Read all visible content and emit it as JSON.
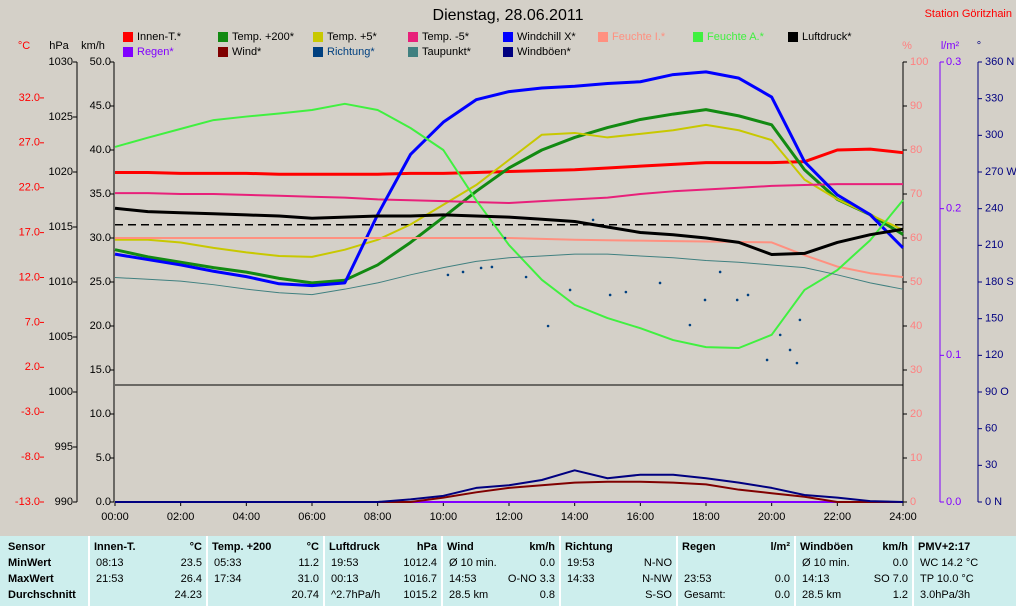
{
  "chart_data": {
    "type": "line",
    "title": "Dienstag, 28.06.2011",
    "subtitle": "Station Göritzhain",
    "x": [
      0,
      1,
      2,
      3,
      4,
      5,
      6,
      7,
      8,
      9,
      10,
      11,
      12,
      13,
      14,
      15,
      16,
      17,
      18,
      19,
      20,
      21,
      22,
      23,
      24
    ],
    "xlim": [
      0,
      24
    ],
    "xticks": [
      {
        "value": 0,
        "label": "00:00"
      },
      {
        "value": 2,
        "label": "02:00"
      },
      {
        "value": 4,
        "label": "04:00"
      },
      {
        "value": 6,
        "label": "06:00"
      },
      {
        "value": 8,
        "label": "08:00"
      },
      {
        "value": 10,
        "label": "10:00"
      },
      {
        "value": 12,
        "label": "12:00"
      },
      {
        "value": 14,
        "label": "14:00"
      },
      {
        "value": 16,
        "label": "16:00"
      },
      {
        "value": 18,
        "label": "18:00"
      },
      {
        "value": 20,
        "label": "20:00"
      },
      {
        "value": 22,
        "label": "22:00"
      },
      {
        "value": 24,
        "label": "24:00"
      }
    ],
    "axes": [
      {
        "label": "°C",
        "color": "#ff0000",
        "lim": [
          -13,
          36
        ],
        "ticks": [
          {
            "value": -13,
            "label": "-13.0"
          },
          {
            "value": -8,
            "label": "-8.0"
          },
          {
            "value": -3,
            "label": "-3.0"
          },
          {
            "value": 2,
            "label": "2.0"
          },
          {
            "value": 7,
            "label": "7.0"
          },
          {
            "value": 12,
            "label": "12.0"
          },
          {
            "value": 17,
            "label": "17.0"
          },
          {
            "value": 22,
            "label": "22.0"
          },
          {
            "value": 27,
            "label": "27.0"
          },
          {
            "value": 32,
            "label": "32.0"
          }
        ]
      },
      {
        "label": "hPa",
        "color": "#000000",
        "lim": [
          990,
          1030
        ],
        "ticks": [
          990,
          995,
          1000,
          1005,
          1010,
          1015,
          1020,
          1025,
          1030
        ]
      },
      {
        "label": "km/h",
        "color": "#000000",
        "lim": [
          0,
          50
        ],
        "ticks": [
          {
            "value": 0,
            "label": "0.0"
          },
          {
            "value": 5,
            "label": "5.0"
          },
          {
            "value": 10,
            "label": "10.0"
          },
          {
            "value": 15,
            "label": "15.0"
          },
          {
            "value": 20,
            "label": "20.0"
          },
          {
            "value": 25,
            "label": "25.0"
          },
          {
            "value": 30,
            "label": "30.0"
          },
          {
            "value": 35,
            "label": "35.0"
          },
          {
            "value": 40,
            "label": "40.0"
          },
          {
            "value": 45,
            "label": "45.0"
          },
          {
            "value": 50,
            "label": "50.0"
          }
        ]
      },
      {
        "label": "%",
        "color": "#ff8080",
        "lim": [
          0,
          100
        ],
        "ticks": [
          0,
          10,
          20,
          30,
          40,
          50,
          60,
          70,
          80,
          90,
          100
        ]
      },
      {
        "label": "l/m²",
        "color": "#8000ff",
        "lim": [
          0,
          0.3
        ],
        "ticks": [
          {
            "value": 0,
            "label": "0.0"
          },
          0.1,
          0.2,
          0.3
        ]
      },
      {
        "label": "°",
        "color": "#000080",
        "lim": [
          0,
          360
        ],
        "ticks": [
          {
            "value": 0,
            "label": "0 N"
          },
          30,
          60,
          {
            "value": 90,
            "label": "90 O"
          },
          120,
          150,
          {
            "value": 180,
            "label": "180 S"
          },
          210,
          240,
          {
            "value": 270,
            "label": "270 W"
          },
          300,
          330,
          {
            "value": 360,
            "label": "360 N"
          }
        ]
      }
    ],
    "hline": {
      "value": 1015.2,
      "axis": "hPa"
    },
    "series": [
      {
        "name": "Innen-T.*",
        "axis": "°C",
        "color": "#ff0000",
        "line_width": 3,
        "values": [
          23.7,
          23.7,
          23.6,
          23.6,
          23.6,
          23.5,
          23.5,
          23.5,
          23.5,
          23.6,
          23.6,
          23.7,
          23.8,
          23.9,
          24.0,
          24.2,
          24.4,
          24.6,
          24.8,
          24.8,
          24.8,
          24.9,
          26.2,
          26.3,
          25.9
        ]
      },
      {
        "name": "Temp. +200*",
        "axis": "°C",
        "color": "#128a12",
        "line_width": 3,
        "values": [
          15.1,
          14.3,
          13.7,
          13.1,
          12.6,
          11.9,
          11.4,
          11.7,
          13.4,
          15.9,
          18.7,
          21.6,
          24.2,
          26.2,
          27.6,
          28.7,
          29.6,
          30.2,
          30.7,
          30.0,
          29.0,
          24.0,
          20.7,
          19.0,
          16.8
        ]
      },
      {
        "name": "Temp. +5*",
        "axis": "°C",
        "color": "#c8c800",
        "line_width": 2,
        "values": [
          16.2,
          16.2,
          15.9,
          15.3,
          14.8,
          14.4,
          14.3,
          15.1,
          16.2,
          17.9,
          20.1,
          22.3,
          25.1,
          27.9,
          28.1,
          27.6,
          28.0,
          28.4,
          29.0,
          28.4,
          27.3,
          22.9,
          20.7,
          19.0,
          17.3
        ]
      },
      {
        "name": "Temp. -5*",
        "axis": "°C",
        "color": "#e8207a",
        "line_width": 2,
        "values": [
          21.4,
          21.4,
          21.3,
          21.3,
          21.2,
          21.1,
          21.0,
          20.9,
          20.7,
          20.6,
          20.5,
          20.4,
          20.3,
          20.5,
          20.7,
          20.9,
          21.3,
          21.6,
          21.8,
          22.0,
          22.2,
          22.3,
          22.4,
          22.4,
          22.4
        ]
      },
      {
        "name": "Windchill X*",
        "axis": "°C",
        "color": "#0000ff",
        "line_width": 3,
        "values": [
          14.6,
          14.0,
          13.4,
          12.7,
          12.1,
          11.3,
          11.1,
          11.4,
          19.0,
          25.7,
          29.3,
          31.8,
          32.7,
          33.1,
          33.3,
          33.6,
          33.8,
          34.6,
          34.9,
          34.2,
          32.1,
          24.9,
          21.2,
          19.0,
          15.3
        ]
      },
      {
        "name": "Feuchte I.*",
        "axis": "%",
        "color": "#ff9080",
        "legend_text_color": "#ff9080",
        "line_width": 2,
        "values": [
          60.0,
          60.0,
          60.0,
          60.0,
          60.0,
          60.0,
          60.0,
          60.0,
          60.0,
          60.0,
          60.0,
          60.0,
          60.0,
          59.8,
          59.6,
          59.5,
          59.4,
          59.3,
          59.2,
          59.1,
          59.0,
          56.1,
          53.5,
          52.0,
          51.1
        ]
      },
      {
        "name": "Feuchte A.*",
        "axis": "%",
        "color": "#40f040",
        "legend_text_color": "#40f040",
        "line_width": 2,
        "values": [
          80.7,
          82.8,
          84.8,
          86.8,
          87.6,
          88.3,
          89.1,
          90.5,
          89.1,
          85.0,
          80.0,
          68.6,
          58.4,
          50.5,
          44.8,
          41.8,
          39.5,
          36.8,
          35.2,
          35.0,
          38.0,
          48.2,
          52.7,
          59.5,
          68.6
        ]
      },
      {
        "name": "Luftdruck*",
        "axis": "hPa",
        "color": "#000000",
        "line_width": 3,
        "values": [
          1016.7,
          1016.4,
          1016.3,
          1016.2,
          1016.1,
          1016.0,
          1015.8,
          1015.9,
          1016.0,
          1016.0,
          1016.1,
          1016.0,
          1015.9,
          1015.7,
          1015.5,
          1015.0,
          1014.5,
          1014.3,
          1014.0,
          1013.6,
          1012.5,
          1012.6,
          1013.6,
          1014.3,
          1014.8
        ]
      },
      {
        "name": "Regen*",
        "axis": "l/m²",
        "color": "#8000ff",
        "legend_text_color": "#8000ff",
        "line_width": 2,
        "values": [
          0,
          0,
          0,
          0,
          0,
          0,
          0,
          0,
          0,
          0,
          0,
          0,
          0,
          0,
          0,
          0,
          0,
          0,
          0,
          0,
          0,
          0,
          0,
          0,
          0
        ]
      },
      {
        "name": "Wind*",
        "axis": "km/h",
        "color": "#800000",
        "line_width": 2,
        "values": [
          0,
          0,
          0,
          0,
          0,
          0,
          0,
          0,
          0,
          0,
          0.5,
          1.1,
          1.6,
          1.9,
          2.2,
          2.3,
          2.3,
          2.2,
          2.0,
          1.4,
          1.0,
          0.6,
          0,
          0,
          0
        ]
      },
      {
        "name": "Richtung*",
        "axis": "°",
        "type": "scatter",
        "color": "#004080",
        "legend_text_color": "#004080",
        "line_width": 1,
        "x": [
          10.14,
          10.6,
          11.15,
          11.48,
          11.88,
          12.52,
          13.19,
          13.86,
          14.56,
          15.08,
          15.56,
          16.6,
          17.51,
          17.97,
          18.43,
          18.95,
          19.28,
          19.86,
          20.26,
          20.56,
          20.86,
          20.77
        ],
        "values": [
          185.8,
          188.2,
          191.5,
          192.3,
          216.0,
          184.1,
          144.0,
          173.5,
          230.8,
          169.4,
          171.8,
          179.2,
          144.8,
          165.3,
          188.2,
          165.3,
          169.4,
          116.2,
          136.7,
          124.4,
          149.0,
          113.7
        ]
      },
      {
        "name": "Taupunkt*",
        "axis": "°C",
        "color": "#408080",
        "line_width": 1,
        "values": [
          12.0,
          11.8,
          11.6,
          11.2,
          10.7,
          10.3,
          10.1,
          10.7,
          11.4,
          12.3,
          13.1,
          13.8,
          14.2,
          14.4,
          14.6,
          14.6,
          14.4,
          14.2,
          13.9,
          13.7,
          13.4,
          13.1,
          12.3,
          11.4,
          10.7
        ]
      },
      {
        "name": "Windböen*",
        "axis": "km/h",
        "color": "#000080",
        "line_width": 2,
        "values": [
          0,
          0,
          0,
          0,
          0,
          0,
          0,
          0,
          0,
          0.3,
          0.7,
          1.6,
          1.9,
          2.5,
          3.6,
          2.7,
          3.1,
          3.1,
          2.7,
          2.2,
          1.6,
          0.8,
          0.5,
          0.1,
          0
        ]
      }
    ]
  },
  "table": {
    "row_labels": [
      "Sensor",
      "MinWert",
      "MaxWert",
      "Durchschnitt"
    ],
    "columns": [
      {
        "title": "Innen-T.",
        "unit": "°C",
        "cells": [
          [
            "08:13",
            "23.5"
          ],
          [
            "21:53",
            "26.4"
          ],
          [
            null,
            "24.23"
          ]
        ]
      },
      {
        "title": "Temp. +200",
        "unit": "°C",
        "cells": [
          [
            "05:33",
            "11.2"
          ],
          [
            "17:34",
            "31.0"
          ],
          [
            null,
            "20.74"
          ]
        ]
      },
      {
        "title": "Luftdruck",
        "unit": "hPa",
        "cells": [
          [
            "19:53",
            "1012.4"
          ],
          [
            "00:13",
            "1016.7"
          ],
          [
            "^2.7hPa/h",
            "1015.2"
          ]
        ]
      },
      {
        "title": "Wind",
        "unit": "km/h",
        "cells": [
          [
            "Ø 10 min.",
            "0.0"
          ],
          [
            "14:53",
            "O-NO 3.3"
          ],
          [
            "28.5 km",
            "0.8"
          ]
        ]
      },
      {
        "title": "Richtung",
        "unit": null,
        "cells": [
          [
            "19:53",
            "N-NO"
          ],
          [
            "14:33",
            "N-NW"
          ],
          [
            null,
            "S-SO"
          ]
        ]
      },
      {
        "title": "Regen",
        "unit": "l/m²",
        "cells": [
          null,
          [
            "23:53",
            "0.0"
          ],
          [
            "Gesamt:",
            "0.0"
          ]
        ]
      },
      {
        "title": "Windböen",
        "unit": "km/h",
        "cells": [
          [
            "Ø 10 min.",
            "0.0"
          ],
          [
            "14:13",
            "SO 7.0"
          ],
          [
            "28.5 km",
            "1.2"
          ]
        ]
      },
      {
        "title": "PMV+2:17",
        "unit": null,
        "cells": [
          [
            "WC 14.2 °C"
          ],
          [
            "TP 10.0 °C"
          ],
          [
            "3.0hPa/3h"
          ]
        ]
      }
    ]
  }
}
